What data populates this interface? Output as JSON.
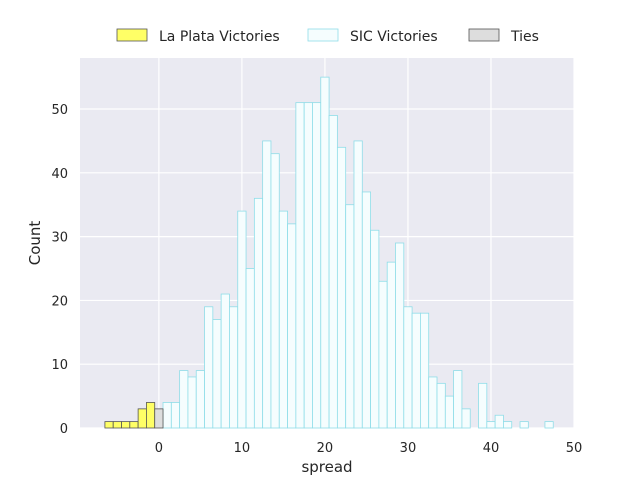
{
  "chart_data": {
    "type": "bar",
    "title": "",
    "xlabel": "spread",
    "ylabel": "Count",
    "xlim": [
      -9.5,
      50
    ],
    "ylim": [
      0,
      58
    ],
    "xticks": [
      0,
      10,
      20,
      30,
      40,
      50
    ],
    "yticks": [
      0,
      10,
      20,
      30,
      40,
      50
    ],
    "grid": true,
    "legend_position": "top-center",
    "bin_width": 1,
    "series": [
      {
        "name": "La Plata Victories",
        "color": "#ffff66",
        "edge": "#555555",
        "bins": [
          {
            "x": -6,
            "count": 1
          },
          {
            "x": -5,
            "count": 1
          },
          {
            "x": -4,
            "count": 1
          },
          {
            "x": -3,
            "count": 1
          },
          {
            "x": -2,
            "count": 3
          },
          {
            "x": -1,
            "count": 4
          }
        ]
      },
      {
        "name": "SIC Victories",
        "color": "#f5fdfe",
        "edge": "#8fdde8",
        "bins": [
          {
            "x": 1,
            "count": 4
          },
          {
            "x": 2,
            "count": 4
          },
          {
            "x": 3,
            "count": 9
          },
          {
            "x": 4,
            "count": 8
          },
          {
            "x": 5,
            "count": 9
          },
          {
            "x": 6,
            "count": 19
          },
          {
            "x": 7,
            "count": 17
          },
          {
            "x": 8,
            "count": 21
          },
          {
            "x": 9,
            "count": 19
          },
          {
            "x": 10,
            "count": 34
          },
          {
            "x": 11,
            "count": 25
          },
          {
            "x": 12,
            "count": 36
          },
          {
            "x": 13,
            "count": 45
          },
          {
            "x": 14,
            "count": 43
          },
          {
            "x": 15,
            "count": 34
          },
          {
            "x": 16,
            "count": 32
          },
          {
            "x": 17,
            "count": 51
          },
          {
            "x": 18,
            "count": 51
          },
          {
            "x": 19,
            "count": 51
          },
          {
            "x": 20,
            "count": 55
          },
          {
            "x": 21,
            "count": 49
          },
          {
            "x": 22,
            "count": 44
          },
          {
            "x": 23,
            "count": 35
          },
          {
            "x": 24,
            "count": 45
          },
          {
            "x": 25,
            "count": 37
          },
          {
            "x": 26,
            "count": 31
          },
          {
            "x": 27,
            "count": 23
          },
          {
            "x": 28,
            "count": 26
          },
          {
            "x": 29,
            "count": 29
          },
          {
            "x": 30,
            "count": 19
          },
          {
            "x": 31,
            "count": 18
          },
          {
            "x": 32,
            "count": 18
          },
          {
            "x": 33,
            "count": 8
          },
          {
            "x": 34,
            "count": 7
          },
          {
            "x": 35,
            "count": 5
          },
          {
            "x": 36,
            "count": 9
          },
          {
            "x": 37,
            "count": 3
          },
          {
            "x": 38,
            "count": 0
          },
          {
            "x": 39,
            "count": 7
          },
          {
            "x": 40,
            "count": 1
          },
          {
            "x": 41,
            "count": 2
          },
          {
            "x": 42,
            "count": 1
          },
          {
            "x": 43,
            "count": 0
          },
          {
            "x": 44,
            "count": 1
          },
          {
            "x": 45,
            "count": 0
          },
          {
            "x": 46,
            "count": 0
          },
          {
            "x": 47,
            "count": 1
          }
        ]
      },
      {
        "name": "Ties",
        "color": "#dddddd",
        "edge": "#555555",
        "bins": [
          {
            "x": 0,
            "count": 3
          }
        ]
      }
    ]
  }
}
